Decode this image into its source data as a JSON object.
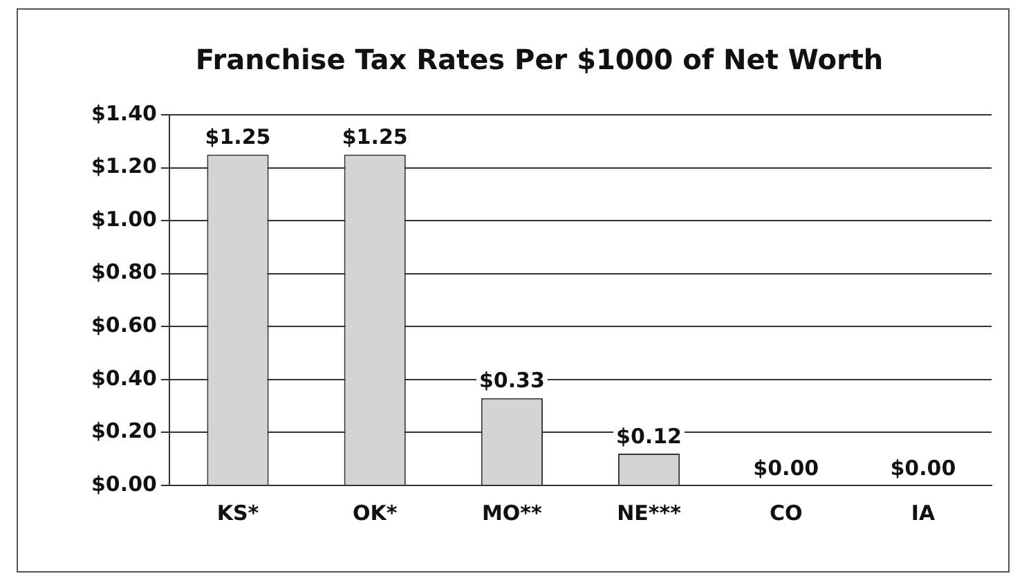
{
  "chart_data": {
    "type": "bar",
    "title": "Franchise Tax Rates Per $1000 of Net Worth",
    "categories": [
      "KS*",
      "OK*",
      "MO**",
      "NE***",
      "CO",
      "IA"
    ],
    "values": [
      1.25,
      1.25,
      0.33,
      0.12,
      0,
      0
    ],
    "value_labels": [
      "$1.25",
      "$1.25",
      "$0.33",
      "$0.12",
      "$0.00",
      "$0.00"
    ],
    "color": "#d4d4d4",
    "ylim": [
      0,
      1.4
    ],
    "yticks": [
      {
        "value": 0,
        "label": "$0.00"
      },
      {
        "value": 0.2,
        "label": "$0.20"
      },
      {
        "value": 0.4,
        "label": "$0.40"
      },
      {
        "value": 0.6,
        "label": "$0.60"
      },
      {
        "value": 0.8,
        "label": "$0.80"
      },
      {
        "value": 1,
        "label": "$1.00"
      },
      {
        "value": 1.2,
        "label": "$1.20"
      },
      {
        "value": 1.4,
        "label": "$1.40"
      }
    ],
    "grid": "y",
    "legend": false
  }
}
